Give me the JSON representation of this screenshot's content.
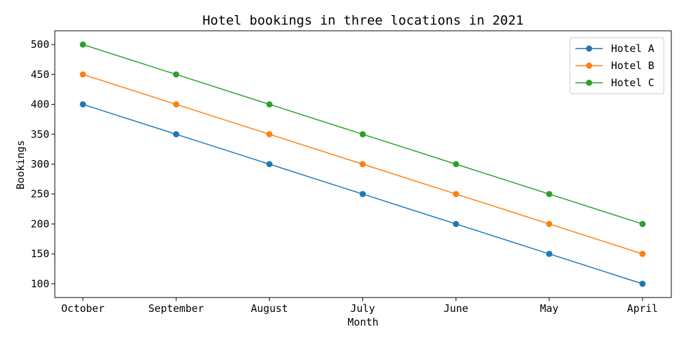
{
  "chart_data": {
    "type": "line",
    "title": "Hotel bookings in three locations in 2021",
    "xlabel": "Month",
    "ylabel": "Bookings",
    "categories": [
      "October",
      "September",
      "August",
      "July",
      "June",
      "May",
      "April"
    ],
    "yticks": [
      100,
      150,
      200,
      250,
      300,
      350,
      400,
      450,
      500
    ],
    "ylim": [
      77,
      523
    ],
    "grid": false,
    "legend_position": "top-right",
    "marker": "circle",
    "series": [
      {
        "name": "Hotel A",
        "color": "#1f77b4",
        "values": [
          400,
          350,
          300,
          250,
          200,
          150,
          100
        ]
      },
      {
        "name": "Hotel B",
        "color": "#ff7f0e",
        "values": [
          450,
          400,
          350,
          300,
          250,
          200,
          150
        ]
      },
      {
        "name": "Hotel C",
        "color": "#2ca02c",
        "values": [
          500,
          450,
          400,
          350,
          300,
          250,
          200
        ]
      }
    ]
  }
}
